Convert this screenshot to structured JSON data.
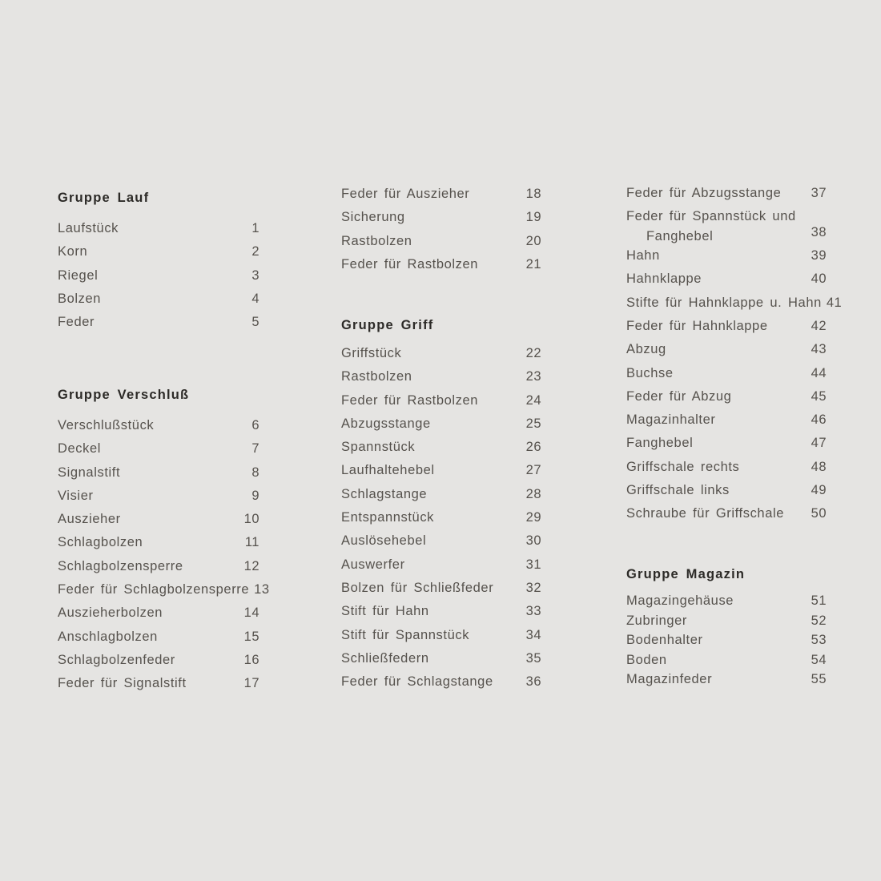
{
  "page": {
    "background": "#e5e4e2",
    "item_color": "#56524d",
    "header_color": "#2c2a27"
  },
  "columns": [
    {
      "sections": [
        {
          "header": "Gruppe Lauf",
          "items": [
            {
              "label": "Laufstück",
              "num": "1"
            },
            {
              "label": "Korn",
              "num": "2"
            },
            {
              "label": "Riegel",
              "num": "3"
            },
            {
              "label": "Bolzen",
              "num": "4"
            },
            {
              "label": "Feder",
              "num": "5"
            }
          ]
        },
        {
          "header": "Gruppe Verschluß",
          "items": [
            {
              "label": "Verschlußstück",
              "num": "6"
            },
            {
              "label": "Deckel",
              "num": "7"
            },
            {
              "label": "Signalstift",
              "num": "8"
            },
            {
              "label": "Visier",
              "num": "9"
            },
            {
              "label": "Auszieher",
              "num": "10"
            },
            {
              "label": "Schlagbolzen",
              "num": "11"
            },
            {
              "label": "Schlagbolzensperre",
              "num": "12"
            },
            {
              "label": "Feder für Schlagbolzensperre",
              "num": "13"
            },
            {
              "label": "Auszieherbolzen",
              "num": "14"
            },
            {
              "label": "Anschlagbolzen",
              "num": "15"
            },
            {
              "label": "Schlagbolzenfeder",
              "num": "16"
            },
            {
              "label": "Feder für Signalstift",
              "num": "17"
            }
          ]
        }
      ]
    },
    {
      "sections": [
        {
          "header": null,
          "items": [
            {
              "label": "Feder für Auszieher",
              "num": "18"
            },
            {
              "label": "Sicherung",
              "num": "19"
            },
            {
              "label": "Rastbolzen",
              "num": "20"
            },
            {
              "label": "Feder für Rastbolzen",
              "num": "21"
            }
          ]
        },
        {
          "header": "Gruppe Griff",
          "items": [
            {
              "label": "Griffstück",
              "num": "22"
            },
            {
              "label": "Rastbolzen",
              "num": "23"
            },
            {
              "label": "Feder für Rastbolzen",
              "num": "24"
            },
            {
              "label": "Abzugsstange",
              "num": "25"
            },
            {
              "label": "Spannstück",
              "num": "26"
            },
            {
              "label": "Laufhaltehebel",
              "num": "27"
            },
            {
              "label": "Schlagstange",
              "num": "28"
            },
            {
              "label": "Entspannstück",
              "num": "29"
            },
            {
              "label": "Auslösehebel",
              "num": "30"
            },
            {
              "label": "Auswerfer",
              "num": "31"
            },
            {
              "label": "Bolzen für Schließfeder",
              "num": "32"
            },
            {
              "label": "Stift für Hahn",
              "num": "33"
            },
            {
              "label": "Stift für Spannstück",
              "num": "34"
            },
            {
              "label": "Schließfedern",
              "num": "35"
            },
            {
              "label": "Feder für Schlagstange",
              "num": "36"
            }
          ]
        }
      ]
    },
    {
      "sections": [
        {
          "header": null,
          "items": [
            {
              "label": "Feder für Abzugsstange",
              "num": "37"
            },
            {
              "label": "Feder für Spannstück und",
              "label2": "Fanghebel",
              "num": "38"
            },
            {
              "label": "Hahn",
              "num": "39"
            },
            {
              "label": "Hahnklappe",
              "num": "40"
            },
            {
              "label": "Stifte für Hahnklappe u. Hahn",
              "num": "41"
            },
            {
              "label": "Feder für Hahnklappe",
              "num": "42"
            },
            {
              "label": "Abzug",
              "num": "43"
            },
            {
              "label": "Buchse",
              "num": "44"
            },
            {
              "label": "Feder für Abzug",
              "num": "45"
            },
            {
              "label": "Magazinhalter",
              "num": "46"
            },
            {
              "label": "Fanghebel",
              "num": "47"
            },
            {
              "label": "Griffschale rechts",
              "num": "48"
            },
            {
              "label": "Griffschale links",
              "num": "49"
            },
            {
              "label": "Schraube für Griffschale",
              "num": "50"
            }
          ]
        },
        {
          "header": "Gruppe Magazin",
          "items": [
            {
              "label": "Magazingehäuse",
              "num": "51"
            },
            {
              "label": "Zubringer",
              "num": "52"
            },
            {
              "label": "Bodenhalter",
              "num": "53"
            },
            {
              "label": "Boden",
              "num": "54"
            },
            {
              "label": "Magazinfeder",
              "num": "55"
            }
          ]
        }
      ]
    }
  ]
}
